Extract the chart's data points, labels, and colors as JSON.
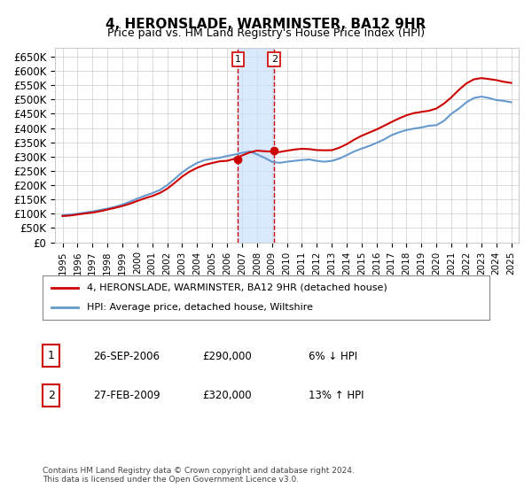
{
  "title": "4, HERONSLADE, WARMINSTER, BA12 9HR",
  "subtitle": "Price paid vs. HM Land Registry's House Price Index (HPI)",
  "ylabel_ticks": [
    "£0",
    "£50K",
    "£100K",
    "£150K",
    "£200K",
    "£250K",
    "£300K",
    "£350K",
    "£400K",
    "£450K",
    "£500K",
    "£550K",
    "£600K",
    "£650K"
  ],
  "ytick_vals": [
    0,
    50000,
    100000,
    150000,
    200000,
    250000,
    300000,
    350000,
    400000,
    450000,
    500000,
    550000,
    600000,
    650000
  ],
  "transaction1": {
    "date_x": 2006.73,
    "price": 290000,
    "label": "1"
  },
  "transaction2": {
    "date_x": 2009.15,
    "price": 320000,
    "label": "2"
  },
  "legend_line1": "4, HERONSLADE, WARMINSTER, BA12 9HR (detached house)",
  "legend_line2": "HPI: Average price, detached house, Wiltshire",
  "table_row1": [
    "1",
    "26-SEP-2006",
    "£290,000",
    "6% ↓ HPI"
  ],
  "table_row2": [
    "2",
    "27-FEB-2009",
    "£320,000",
    "13% ↑ HPI"
  ],
  "footnote": "Contains HM Land Registry data © Crown copyright and database right 2024.\nThis data is licensed under the Open Government Licence v3.0.",
  "line_color_red": "#cc0000",
  "line_color_blue": "#6699cc",
  "vline_color": "#cc0000",
  "shade_color": "#cce0ff",
  "background_color": "#ffffff",
  "grid_color": "#cccccc",
  "xmin": 1995,
  "xmax": 2025.5
}
